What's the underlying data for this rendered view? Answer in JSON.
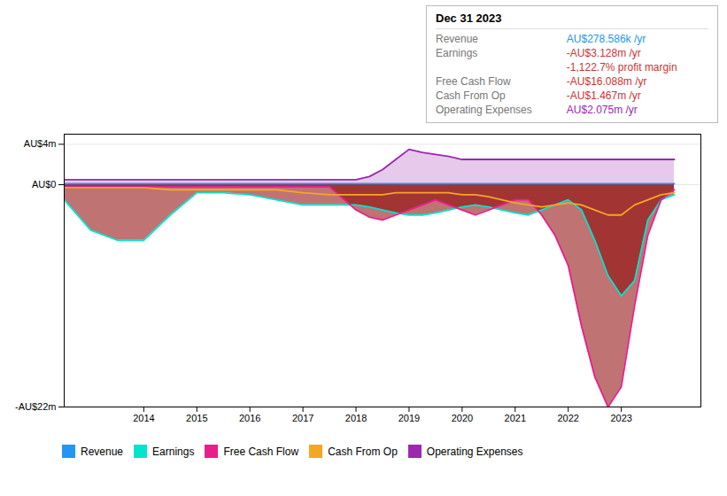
{
  "chart_data": {
    "type": "line",
    "x": [
      2012.5,
      2013,
      2013.5,
      2014,
      2014.5,
      2015,
      2015.5,
      2016,
      2016.5,
      2017,
      2017.5,
      2018,
      2018.25,
      2018.5,
      2018.75,
      2019,
      2019.25,
      2019.5,
      2019.75,
      2020,
      2020.25,
      2020.5,
      2020.75,
      2021,
      2021.25,
      2021.5,
      2021.75,
      2022,
      2022.25,
      2022.5,
      2022.75,
      2023,
      2023.25,
      2023.5,
      2023.75,
      2024
    ],
    "series": [
      {
        "name": "Revenue",
        "color": "#2196f3",
        "type": "line",
        "values": [
          0.1,
          0.1,
          0.1,
          0.1,
          0.1,
          0.1,
          0.1,
          0.1,
          0.1,
          0.1,
          0.1,
          0.1,
          0.1,
          0.1,
          0.1,
          0.1,
          0.1,
          0.1,
          0.1,
          0.1,
          0.1,
          0.1,
          0.1,
          0.1,
          0.1,
          0.1,
          0.1,
          0.1,
          0.1,
          0.1,
          0.1,
          0.1,
          0.1,
          0.1,
          0.1,
          0.1
        ]
      },
      {
        "name": "Earnings",
        "color": "#00e5cc",
        "type": "area",
        "values": [
          -1.5,
          -4.5,
          -5.5,
          -5.5,
          -3.0,
          -0.8,
          -0.8,
          -1.0,
          -1.5,
          -2.0,
          -2.0,
          -2.0,
          -2.2,
          -2.5,
          -2.8,
          -3.0,
          -3.0,
          -2.8,
          -2.5,
          -2.2,
          -2.0,
          -2.2,
          -2.5,
          -2.8,
          -3.0,
          -2.5,
          -2.0,
          -1.5,
          -2.5,
          -5.5,
          -9.0,
          -11.0,
          -9.5,
          -3.5,
          -1.5,
          -1.0
        ]
      },
      {
        "name": "Free Cash Flow",
        "color": "#e91e8c",
        "type": "area",
        "values": [
          -0.2,
          -0.2,
          -0.2,
          -0.2,
          -0.2,
          -0.2,
          -0.2,
          -0.2,
          -0.2,
          -0.2,
          -0.2,
          -2.5,
          -3.2,
          -3.5,
          -3.0,
          -2.5,
          -2.0,
          -1.5,
          -2.0,
          -2.5,
          -3.0,
          -2.5,
          -2.0,
          -1.5,
          -1.5,
          -3.0,
          -5.0,
          -8.0,
          -14.0,
          -19.0,
          -22.0,
          -20.0,
          -12.0,
          -5.0,
          -1.5,
          -0.5
        ]
      },
      {
        "name": "Cash From Op",
        "color": "#f5a623",
        "type": "line",
        "values": [
          -0.3,
          -0.3,
          -0.3,
          -0.3,
          -0.5,
          -0.5,
          -0.5,
          -0.5,
          -0.5,
          -0.8,
          -1.0,
          -1.0,
          -1.0,
          -1.0,
          -0.8,
          -0.8,
          -0.8,
          -0.8,
          -0.8,
          -1.0,
          -1.0,
          -1.2,
          -1.5,
          -1.8,
          -2.0,
          -2.2,
          -2.0,
          -1.8,
          -2.0,
          -2.5,
          -3.0,
          -3.0,
          -2.0,
          -1.5,
          -1.0,
          -0.8
        ]
      },
      {
        "name": "Operating Expenses",
        "color": "#9c27b0",
        "type": "area",
        "values": [
          0.5,
          0.5,
          0.5,
          0.5,
          0.5,
          0.5,
          0.5,
          0.5,
          0.5,
          0.5,
          0.5,
          0.5,
          0.8,
          1.5,
          2.5,
          3.5,
          3.2,
          3.0,
          2.8,
          2.5,
          2.5,
          2.5,
          2.5,
          2.5,
          2.5,
          2.5,
          2.5,
          2.5,
          2.5,
          2.5,
          2.5,
          2.5,
          2.5,
          2.5,
          2.5,
          2.5
        ]
      }
    ],
    "xlim": [
      2012.5,
      2024.5
    ],
    "xticks": [
      2014,
      2015,
      2016,
      2017,
      2018,
      2019,
      2020,
      2021,
      2022,
      2023
    ],
    "ylim": [
      -22,
      5
    ],
    "yticks": [
      {
        "value": -22,
        "label": "-AU$22m"
      },
      {
        "value": 0,
        "label": "AU$0"
      },
      {
        "value": 4,
        "label": "AU$4m"
      }
    ],
    "grid": "y",
    "legend": "bottom",
    "annotations": {
      "title": "Dec 31 2023",
      "rows": [
        {
          "label": "Revenue",
          "value": "AU$278.586k /yr",
          "color": "#2196f3"
        },
        {
          "label": "Earnings",
          "value": "-AU$3.128m /yr",
          "color": "#cc3333"
        },
        {
          "value": "-1,122.7% profit margin",
          "color": "#cc3333"
        },
        {
          "label": "Free Cash Flow",
          "value": "-AU$16.088m /yr",
          "color": "#cc3333"
        },
        {
          "label": "Cash From Op",
          "value": "-AU$1.467m /yr",
          "color": "#cc3333"
        },
        {
          "label": "Operating Expenses",
          "value": "AU$2.075m /yr",
          "color": "#9c27b0"
        }
      ]
    }
  }
}
